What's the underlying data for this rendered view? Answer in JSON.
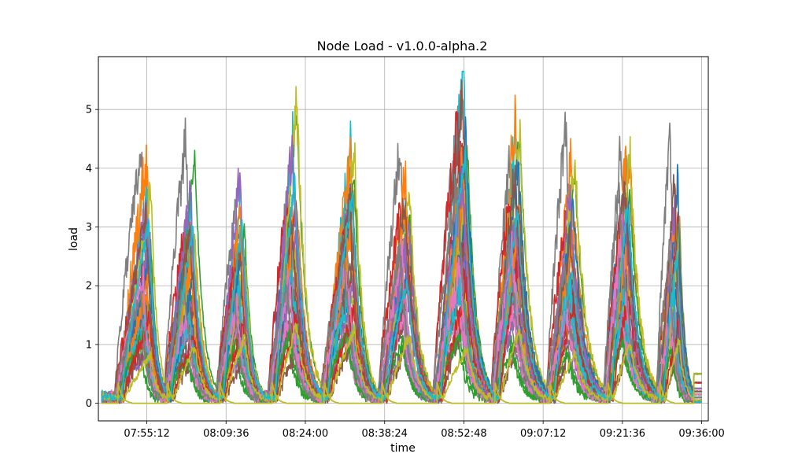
{
  "chart_data": {
    "type": "line",
    "title": "Node Load  -  v1.0.0-alpha.2",
    "xlabel": "time",
    "ylabel": "load",
    "x_ticks": [
      "07:55:12",
      "08:09:36",
      "08:24:00",
      "08:38:24",
      "08:52:48",
      "09:07:12",
      "09:21:36",
      "09:36:00"
    ],
    "y_ticks": [
      0,
      1,
      2,
      3,
      4,
      5
    ],
    "xlim": [
      "07:46:24",
      "09:37:12"
    ],
    "ylim": [
      -0.3,
      5.9
    ],
    "grid": true,
    "legend": "none",
    "series_count": 40,
    "x_start": "07:47:00",
    "x_end": "09:36:00",
    "bursts": [
      {
        "start": "07:50:00",
        "peak": "07:55:00",
        "end": "07:58:30"
      },
      {
        "start": "07:59:00",
        "peak": "08:03:00",
        "end": "08:07:30"
      },
      {
        "start": "08:08:30",
        "peak": "08:12:00",
        "end": "08:16:00"
      },
      {
        "start": "08:18:00",
        "peak": "08:21:30",
        "end": "08:26:30"
      },
      {
        "start": "08:27:30",
        "peak": "08:32:00",
        "end": "08:36:30"
      },
      {
        "start": "08:38:00",
        "peak": "08:42:00",
        "end": "08:47:00"
      },
      {
        "start": "08:48:00",
        "peak": "08:52:30",
        "end": "08:57:30"
      },
      {
        "start": "08:58:30",
        "peak": "09:02:00",
        "end": "09:07:30"
      },
      {
        "start": "09:08:30",
        "peak": "09:12:00",
        "end": "09:18:00"
      },
      {
        "start": "09:19:00",
        "peak": "09:22:00",
        "end": "09:27:30"
      },
      {
        "start": "09:28:30",
        "peak": "09:31:00",
        "end": "09:34:00"
      }
    ],
    "burst_peaks": [
      4.1,
      4.1,
      4.2,
      5.2,
      4.8,
      4.6,
      5.6,
      5.2,
      4.7,
      5.3,
      4.5
    ],
    "colors": [
      "#1f77b4",
      "#ff7f0e",
      "#2ca02c",
      "#d62728",
      "#9467bd",
      "#8c564b",
      "#e377c2",
      "#7f7f7f",
      "#bcbd22",
      "#17becf"
    ],
    "final_values": [
      0.5,
      0.35,
      0.25,
      0.2,
      0.15,
      0.1,
      0.05,
      0.02
    ]
  }
}
